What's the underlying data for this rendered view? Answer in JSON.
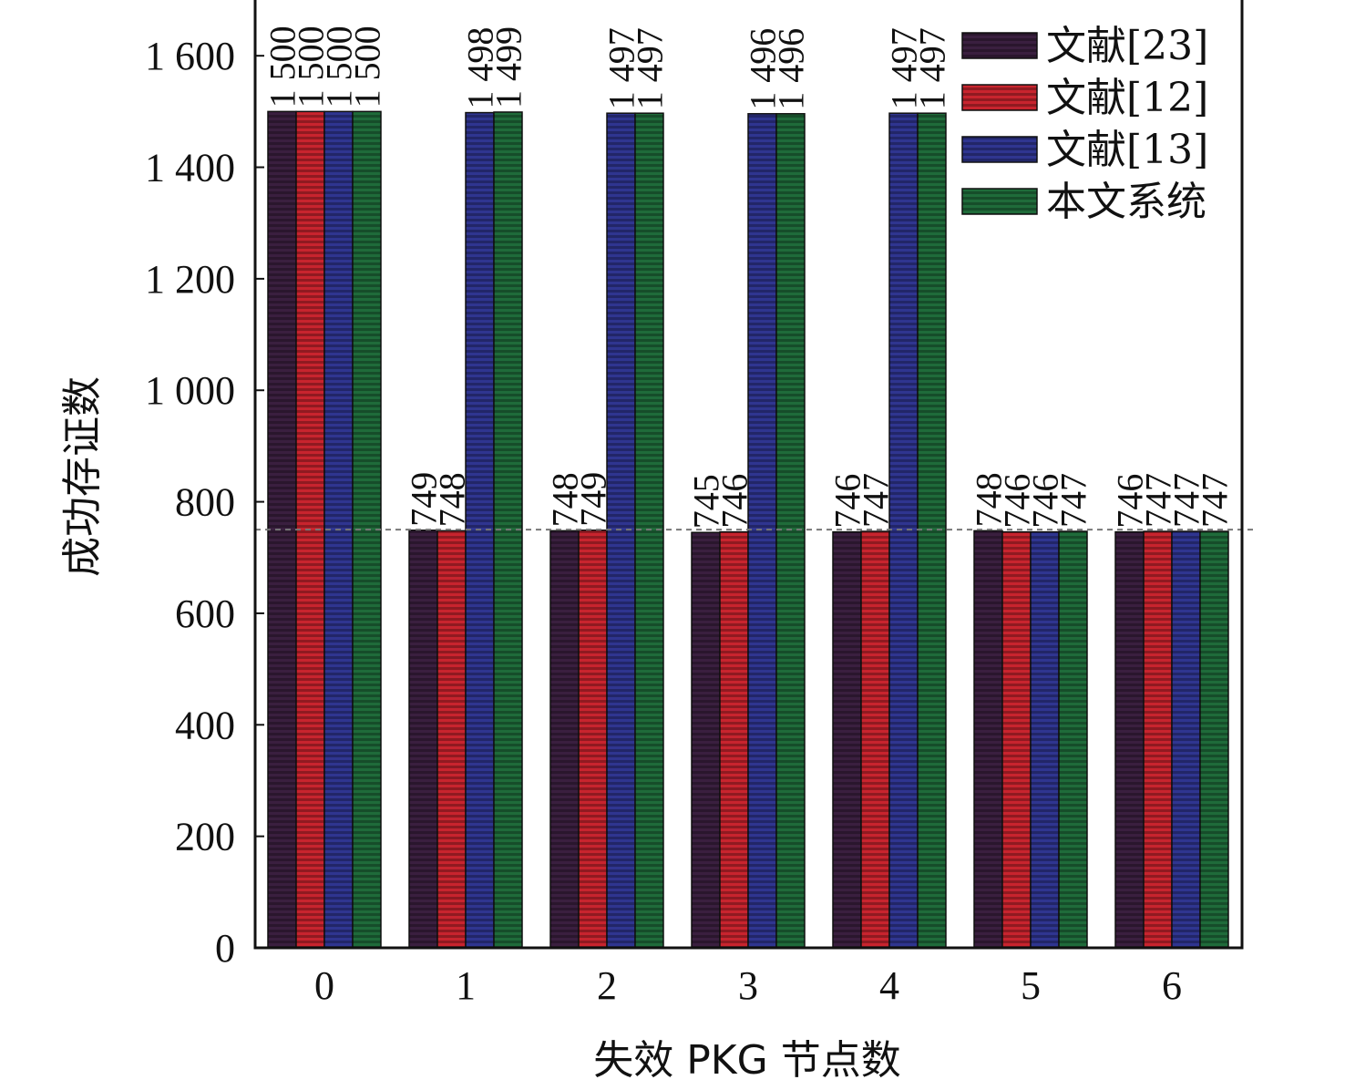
{
  "chart_data": {
    "type": "bar",
    "title": "",
    "xlabel": "失效 PKG 节点数",
    "ylabel": "成功存证数",
    "categories": [
      "0",
      "1",
      "2",
      "3",
      "4",
      "5",
      "6"
    ],
    "ylim": [
      0,
      1700
    ],
    "yticks": [
      0,
      200,
      400,
      600,
      800,
      1000,
      1200,
      1400,
      1600
    ],
    "ytick_labels": [
      "0",
      "200",
      "400",
      "600",
      "800",
      "1 000",
      "1 200",
      "1 400",
      "1 600"
    ],
    "reference_line": 750,
    "grid": false,
    "legend_position": "top-right",
    "series": [
      {
        "name": "文献[23]",
        "color": "#3a1f3f",
        "values": [
          1500,
          749,
          748,
          745,
          746,
          748,
          746
        ],
        "labels": [
          "1 500",
          "749",
          "748",
          "745",
          "746",
          "748",
          "746"
        ]
      },
      {
        "name": "文献[12]",
        "color": "#c8242e",
        "values": [
          1500,
          748,
          749,
          746,
          747,
          746,
          747
        ],
        "labels": [
          "1 500",
          "748",
          "749",
          "746",
          "747",
          "746",
          "747"
        ]
      },
      {
        "name": "文献[13]",
        "color": "#2f3590",
        "values": [
          1500,
          1498,
          1497,
          1496,
          1497,
          746,
          747
        ],
        "labels": [
          "1 500",
          "1 498",
          "1 497",
          "1 496",
          "1 497",
          "746",
          "747"
        ]
      },
      {
        "name": "本文系统",
        "color": "#1f6b3a",
        "values": [
          1500,
          1499,
          1497,
          1496,
          1497,
          747,
          747
        ],
        "labels": [
          "1 500",
          "1 499",
          "1 497",
          "1 496",
          "1 497",
          "747",
          "747"
        ]
      }
    ]
  }
}
